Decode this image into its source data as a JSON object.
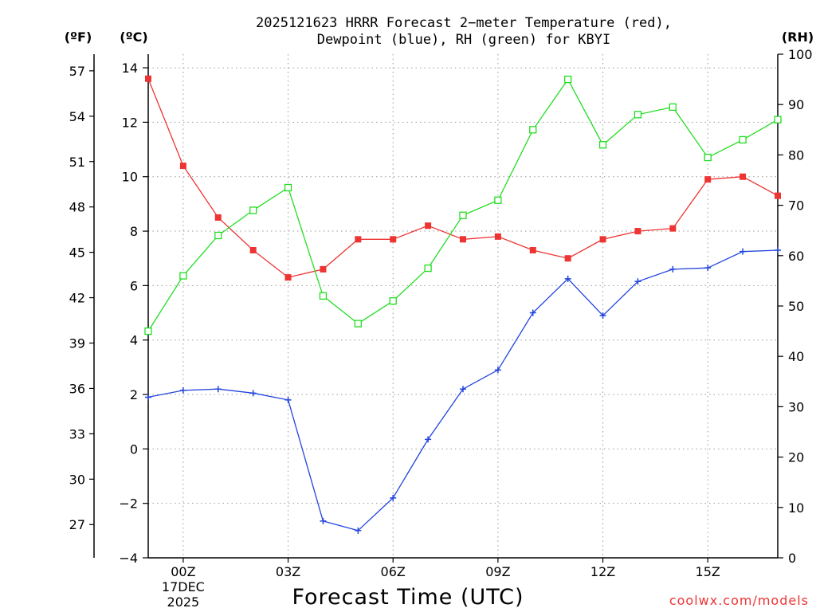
{
  "chart_data": {
    "type": "line",
    "title": "2025121623 HRRR Forecast 2-meter Temperature (red), Dewpoint (blue), RH (green) for KBYI",
    "title_lines": [
      "2025121623 HRRR Forecast 2−meter Temperature (red),",
      "Dewpoint (blue), RH (green) for KBYI"
    ],
    "xlabel": "Forecast Time (UTC)",
    "credit": "coolwx.com/models",
    "unit_labels": {
      "fahrenheit": "(ºF)",
      "celsius": "(ºC)",
      "rh": "(RH)"
    },
    "x_hours": [
      -1,
      0,
      1,
      2,
      3,
      4,
      5,
      6,
      7,
      8,
      9,
      10,
      11,
      12,
      13,
      14,
      15,
      16,
      17
    ],
    "x_range": [
      -1,
      17
    ],
    "x_ticks": [
      {
        "hour": 0,
        "label": "00Z",
        "sub": [
          "17DEC",
          "2025"
        ]
      },
      {
        "hour": 3,
        "label": "03Z"
      },
      {
        "hour": 6,
        "label": "06Z"
      },
      {
        "hour": 9,
        "label": "09Z"
      },
      {
        "hour": 12,
        "label": "12Z"
      },
      {
        "hour": 15,
        "label": "15Z"
      }
    ],
    "celsius_axis": {
      "range": [
        -4,
        14.5
      ],
      "ticks": [
        -4,
        -2,
        0,
        2,
        4,
        6,
        8,
        10,
        12,
        14
      ],
      "tick_labels": [
        "−4",
        "−2",
        "0",
        "2",
        "4",
        "6",
        "8",
        "10",
        "12",
        "14"
      ]
    },
    "fahrenheit_axis": {
      "ticks": [
        27,
        30,
        33,
        36,
        39,
        42,
        45,
        48,
        51,
        54,
        57
      ]
    },
    "rh_axis": {
      "range": [
        0,
        100
      ],
      "ticks": [
        0,
        10,
        20,
        30,
        40,
        50,
        60,
        70,
        80,
        90,
        100
      ]
    },
    "series": [
      {
        "name": "Temperature",
        "color": "#ee3333",
        "axis": "celsius",
        "marker": "filled-square",
        "values": [
          13.6,
          10.4,
          8.5,
          7.3,
          6.3,
          6.6,
          7.7,
          7.7,
          8.2,
          7.7,
          7.8,
          7.3,
          7.0,
          7.7,
          8.0,
          8.1,
          9.9,
          10.0,
          9.3
        ]
      },
      {
        "name": "Dewpoint",
        "color": "#2244dd",
        "axis": "celsius",
        "marker": "plus",
        "values": [
          1.9,
          2.15,
          2.2,
          2.05,
          1.8,
          -2.65,
          -3.0,
          -1.8,
          0.35,
          2.2,
          2.9,
          5.0,
          6.25,
          4.9,
          6.15,
          6.6,
          6.65,
          7.25,
          7.3
        ]
      },
      {
        "name": "RH",
        "color": "#22dd22",
        "axis": "rh",
        "marker": "open-square",
        "values": [
          45,
          56,
          64,
          69,
          73.5,
          52,
          46.5,
          51,
          57.5,
          68,
          71,
          85,
          95,
          82,
          88,
          89.5,
          79.5,
          83,
          87
        ]
      }
    ]
  }
}
